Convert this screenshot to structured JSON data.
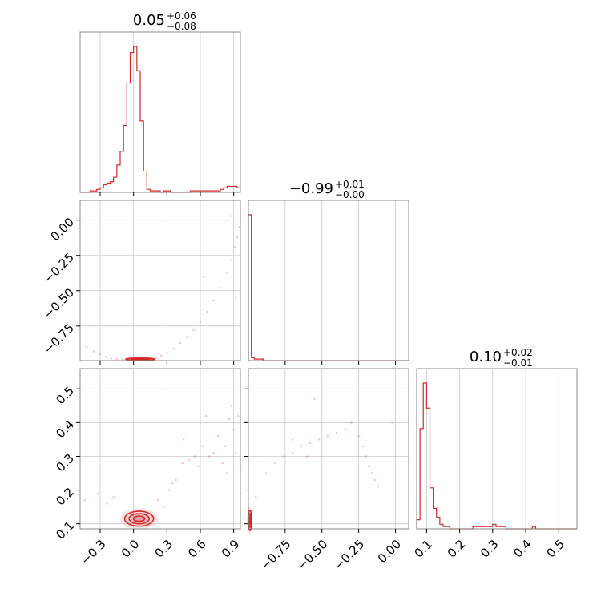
{
  "chart_data": {
    "type": "corner",
    "color": "#d62728",
    "grid": true,
    "panels": [
      {
        "id": "hist-1",
        "type": "histogram",
        "title": {
          "median": "0.05",
          "plus": "+0.06",
          "minus": "−0.08"
        },
        "xlim": [
          -0.48,
          0.96
        ],
        "bins": {
          "start": -0.48,
          "width": 0.03,
          "counts": [
            0,
            0,
            0,
            0.01,
            0.01,
            0.02,
            0.03,
            0.05,
            0.06,
            0.07,
            0.1,
            0.18,
            0.27,
            0.44,
            0.72,
            0.92,
            0.96,
            0.8,
            0.47,
            0.14,
            0.02,
            0.01,
            0.01,
            0.01,
            0,
            0.01,
            0.01,
            0,
            0,
            0,
            0,
            0,
            0,
            0.01,
            0.01,
            0.01,
            0.01,
            0.01,
            0.01,
            0.01,
            0.01,
            0.01,
            0.02,
            0.03,
            0.04,
            0.04,
            0.04,
            0.03
          ]
        }
      },
      {
        "id": "hist-2",
        "type": "histogram",
        "title": {
          "median": "−0.99",
          "plus": "+0.01",
          "minus": "−0.00"
        },
        "xlim": [
          -1.0,
          0.09
        ],
        "bins": {
          "start": -1.0,
          "width": 0.02,
          "counts": [
            0.98,
            0.02,
            0.01,
            0.01,
            0.01,
            0,
            0,
            0,
            0,
            0,
            0,
            0,
            0,
            0,
            0,
            0,
            0,
            0,
            0,
            0,
            0,
            0,
            0,
            0,
            0,
            0,
            0,
            0,
            0,
            0,
            0,
            0,
            0,
            0,
            0,
            0,
            0,
            0,
            0,
            0,
            0,
            0,
            0,
            0,
            0,
            0,
            0,
            0,
            0,
            0,
            0,
            0,
            0,
            0,
            0
          ]
        }
      },
      {
        "id": "hist-3",
        "type": "histogram",
        "title": {
          "median": "0.10",
          "plus": "+0.02",
          "minus": "−0.01"
        },
        "xlim": [
          0.07,
          0.555
        ],
        "bins": {
          "start": 0.07,
          "width": 0.01,
          "counts": [
            0.04,
            0.44,
            0.64,
            0.53,
            0.18,
            0.09,
            0.05,
            0.02,
            0.01,
            0.01,
            0,
            0,
            0,
            0,
            0,
            0,
            0,
            0.01,
            0.01,
            0.01,
            0.01,
            0.01,
            0.01,
            0.02,
            0.01,
            0.01,
            0.01,
            0,
            0,
            0,
            0,
            0,
            0,
            0,
            0,
            0.01,
            0,
            0,
            0,
            0,
            0,
            0,
            0,
            0,
            0,
            0,
            0,
            0,
            0
          ]
        }
      },
      {
        "id": "scatter-2-1",
        "type": "contour",
        "xlim": [
          -0.48,
          0.96
        ],
        "ylim": [
          -0.995,
          0.14
        ],
        "points": [
          [
            -0.42,
            -0.9
          ],
          [
            -0.36,
            -0.93
          ],
          [
            -0.3,
            -0.95
          ],
          [
            -0.25,
            -0.97
          ],
          [
            -0.2,
            -0.98
          ],
          [
            -0.15,
            -0.985
          ],
          [
            -0.1,
            -0.99
          ],
          [
            -0.05,
            -0.99
          ],
          [
            0.0,
            -0.99
          ],
          [
            0.05,
            -0.99
          ],
          [
            0.1,
            -0.99
          ],
          [
            0.15,
            -0.985
          ],
          [
            0.2,
            -0.975
          ],
          [
            0.25,
            -0.96
          ],
          [
            0.3,
            -0.94
          ],
          [
            0.36,
            -0.91
          ],
          [
            0.42,
            -0.87
          ],
          [
            0.48,
            -0.83
          ],
          [
            0.54,
            -0.78
          ],
          [
            0.6,
            -0.72
          ],
          [
            0.66,
            -0.65
          ],
          [
            0.72,
            -0.57
          ],
          [
            0.78,
            -0.48
          ],
          [
            0.84,
            -0.37
          ],
          [
            0.88,
            -0.28
          ],
          [
            0.91,
            -0.19
          ],
          [
            0.93,
            -0.12
          ],
          [
            0.95,
            -0.05
          ],
          [
            0.96,
            0.03
          ],
          [
            0.88,
            0.03
          ],
          [
            0.92,
            -0.55
          ],
          [
            0.63,
            -0.4
          ]
        ],
        "core": {
          "cx": 0.06,
          "cy": -0.985,
          "rx": [
            0.13,
            0.08,
            0.04
          ],
          "ry": [
            0.008,
            0.005,
            0.003
          ]
        }
      },
      {
        "id": "scatter-3-1",
        "type": "contour",
        "xlim": [
          -0.48,
          0.96
        ],
        "ylim": [
          0.085,
          0.56
        ],
        "points": [
          [
            -0.44,
            0.17
          ],
          [
            -0.32,
            0.19
          ],
          [
            -0.24,
            0.16
          ],
          [
            -0.18,
            0.18
          ],
          [
            0.22,
            0.17
          ],
          [
            0.27,
            0.15
          ],
          [
            0.32,
            0.2
          ],
          [
            0.38,
            0.23
          ],
          [
            0.44,
            0.28
          ],
          [
            0.5,
            0.29
          ],
          [
            0.55,
            0.3
          ],
          [
            0.62,
            0.33
          ],
          [
            0.68,
            0.3
          ],
          [
            0.72,
            0.31
          ],
          [
            0.76,
            0.36
          ],
          [
            0.82,
            0.33
          ],
          [
            0.86,
            0.41
          ],
          [
            0.9,
            0.38
          ],
          [
            0.94,
            0.42
          ],
          [
            0.96,
            0.27
          ],
          [
            0.88,
            0.45
          ],
          [
            0.8,
            0.28
          ],
          [
            0.45,
            0.35
          ],
          [
            0.65,
            0.42
          ],
          [
            0.58,
            0.27
          ],
          [
            0.92,
            0.31
          ],
          [
            0.84,
            0.25
          ],
          [
            0.35,
            0.22
          ]
        ],
        "core": {
          "cx": 0.05,
          "cy": 0.115,
          "rx": [
            0.13,
            0.09,
            0.05
          ],
          "ry": [
            0.022,
            0.015,
            0.008
          ]
        }
      },
      {
        "id": "scatter-3-2",
        "type": "contour",
        "xlim": [
          -1.0,
          0.09
        ],
        "ylim": [
          0.085,
          0.56
        ],
        "points": [
          [
            -0.98,
            0.12
          ],
          [
            -0.99,
            0.1
          ],
          [
            -0.97,
            0.14
          ],
          [
            -0.95,
            0.18
          ],
          [
            -0.88,
            0.25
          ],
          [
            -0.82,
            0.28
          ],
          [
            -0.76,
            0.3
          ],
          [
            -0.7,
            0.31
          ],
          [
            -0.64,
            0.33
          ],
          [
            -0.58,
            0.34
          ],
          [
            -0.52,
            0.35
          ],
          [
            -0.46,
            0.36
          ],
          [
            -0.4,
            0.37
          ],
          [
            -0.34,
            0.38
          ],
          [
            -0.3,
            0.4
          ],
          [
            -0.25,
            0.36
          ],
          [
            -0.22,
            0.33
          ],
          [
            -0.2,
            0.3
          ],
          [
            -0.18,
            0.27
          ],
          [
            -0.16,
            0.25
          ],
          [
            -0.14,
            0.23
          ],
          [
            -0.12,
            0.21
          ],
          [
            -0.55,
            0.47
          ],
          [
            -0.02,
            0.4
          ],
          [
            -0.6,
            0.3
          ],
          [
            -0.7,
            0.35
          ]
        ],
        "core": {
          "cx": -0.99,
          "cy": 0.11,
          "rx": [
            0.012,
            0.008,
            0.005
          ],
          "ry": [
            0.03,
            0.02,
            0.01
          ]
        }
      }
    ],
    "axes": {
      "col1_x_ticks": [
        "−0.3",
        "0.0",
        "0.3",
        "0.6",
        "0.9"
      ],
      "col1_x_values": [
        -0.3,
        0.0,
        0.3,
        0.6,
        0.9
      ],
      "col2_x_ticks": [
        "−0.75",
        "−0.50",
        "−0.25",
        "0.00"
      ],
      "col2_x_values": [
        -0.75,
        -0.5,
        -0.25,
        0.0
      ],
      "col3_x_ticks": [
        "0.1",
        "0.2",
        "0.3",
        "0.4",
        "0.5"
      ],
      "col3_x_values": [
        0.1,
        0.2,
        0.3,
        0.4,
        0.5
      ],
      "row2_y_ticks": [
        "0.00",
        "−0.25",
        "−0.50",
        "−0.75"
      ],
      "row2_y_values": [
        0.0,
        -0.25,
        -0.5,
        -0.75
      ],
      "row3_y_ticks": [
        "0.5",
        "0.4",
        "0.3",
        "0.2",
        "0.1"
      ],
      "row3_y_values": [
        0.5,
        0.4,
        0.3,
        0.2,
        0.1
      ]
    }
  }
}
